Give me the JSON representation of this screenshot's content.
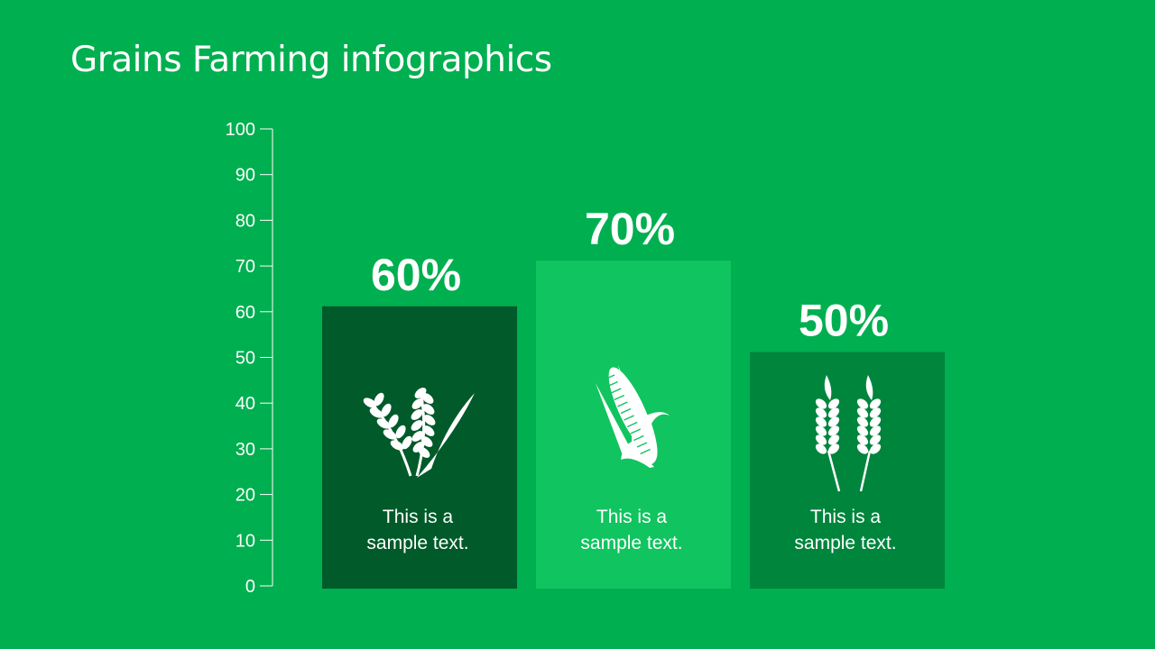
{
  "title": "Grains Farming infographics",
  "chart_data": {
    "type": "bar",
    "title": "Grains Farming infographics",
    "categories": [
      "wheat-rice",
      "corn",
      "wheat"
    ],
    "values": [
      60,
      70,
      50
    ],
    "data_labels": [
      "60%",
      "70%",
      "50%"
    ],
    "captions": [
      [
        "This is a",
        "sample text."
      ],
      [
        "This is a",
        "sample text."
      ],
      [
        "This is a",
        "sample text."
      ]
    ],
    "icons": [
      "rice-wheat-stalks-icon",
      "corn-cob-icon",
      "wheat-ears-icon"
    ],
    "colors": [
      "#005A29",
      "#10C45F",
      "#00853D"
    ],
    "background": "#00AF4F",
    "ylim": [
      0,
      100
    ],
    "yticks": [
      0,
      10,
      20,
      30,
      40,
      50,
      60,
      70,
      80,
      90,
      100
    ],
    "grid": false,
    "xlabel": "",
    "ylabel": ""
  }
}
